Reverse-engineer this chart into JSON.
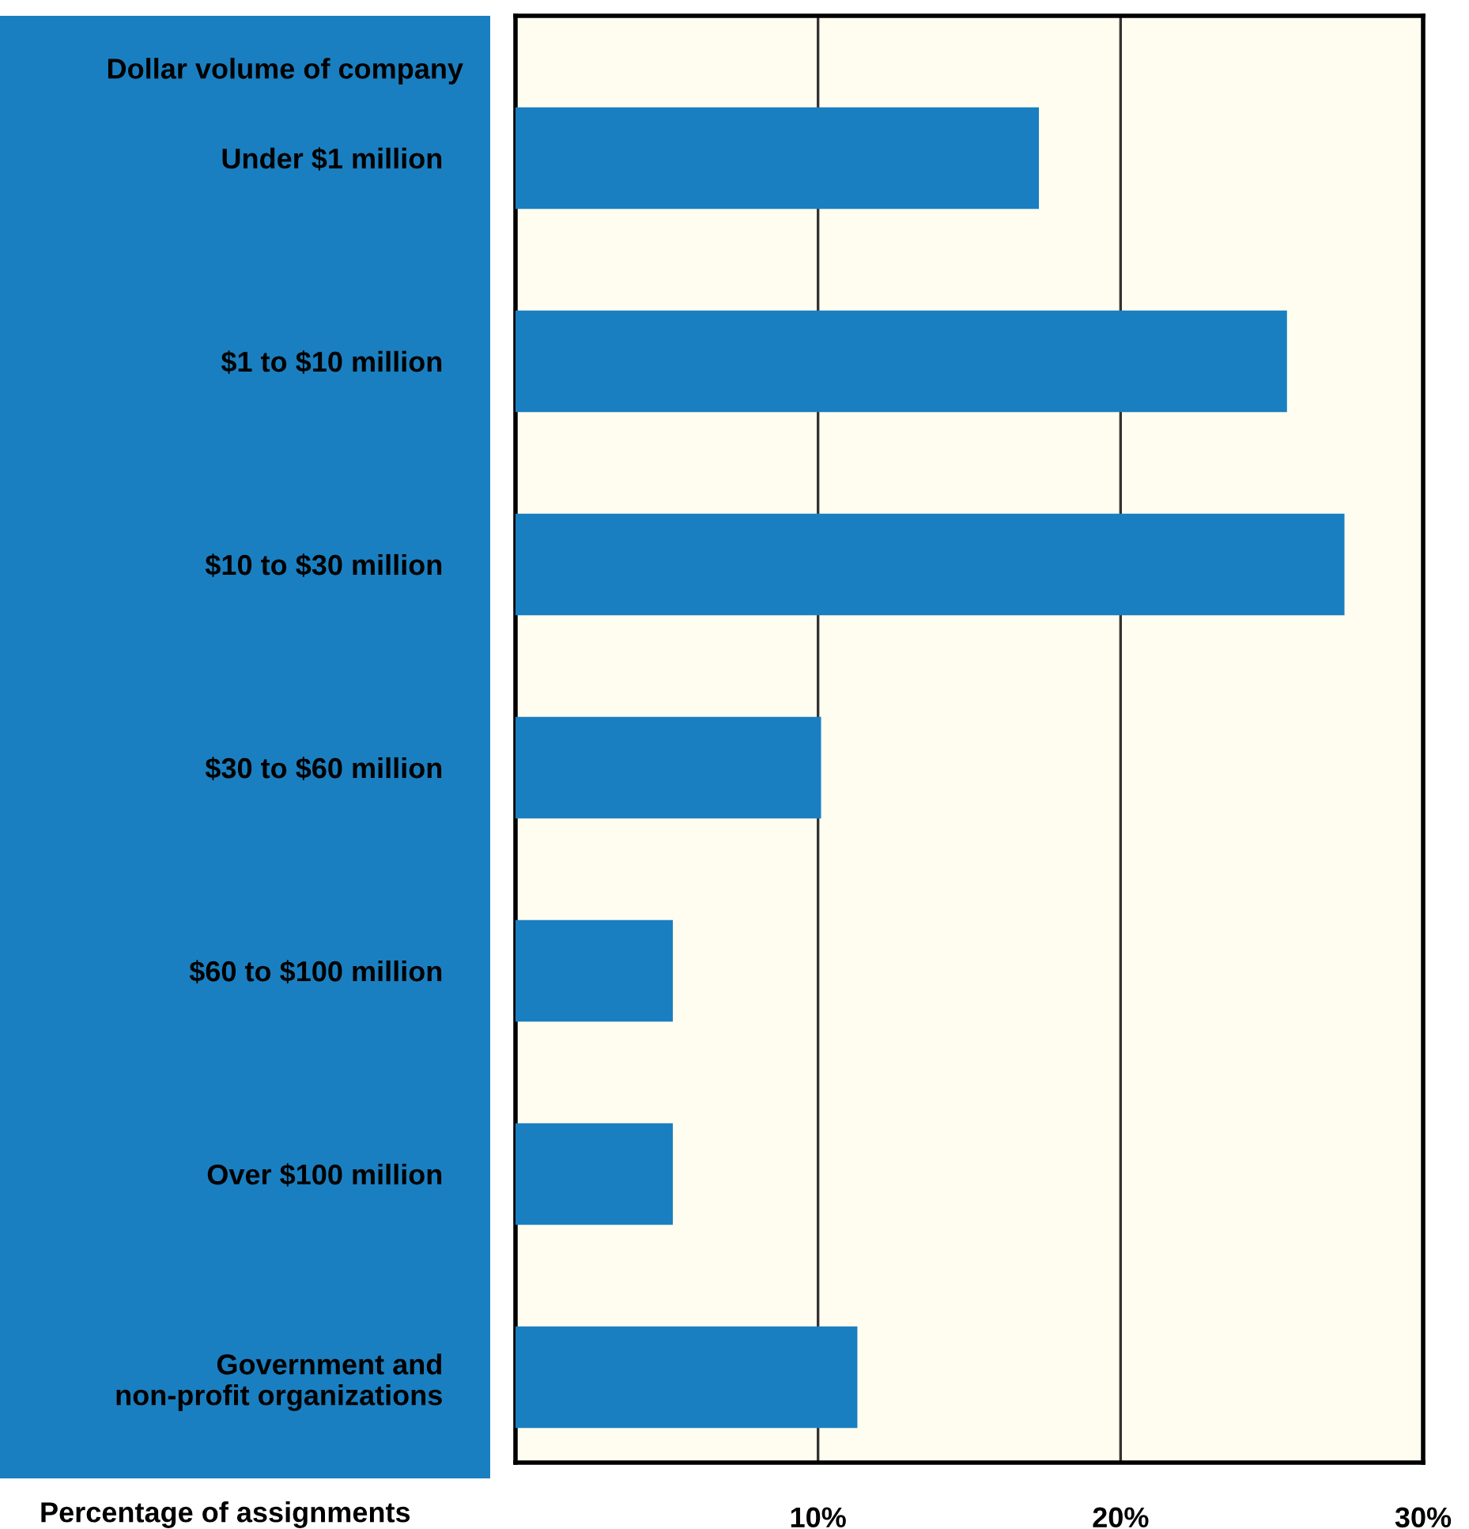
{
  "chart_data": {
    "type": "bar",
    "orientation": "horizontal",
    "ylabel": "Dollar volume of company",
    "xlabel": "Percentage of assignments",
    "categories": [
      "Under $1 million",
      "$1 to $10 million",
      "$10 to $30 million",
      "$30 to $60 million",
      "$60 to $100 million",
      "Over $100 million",
      "Government and\nnon-profit organizations"
    ],
    "values": [
      17.3,
      25.5,
      27.4,
      10.1,
      5.2,
      5.2,
      11.3
    ],
    "color": "#1a7fc0",
    "xlim": [
      0,
      30
    ],
    "xticks": [
      {
        "value": 10,
        "label": "10%"
      },
      {
        "value": 20,
        "label": "20%"
      },
      {
        "value": 30,
        "label": "30%"
      }
    ],
    "grid": "x"
  }
}
